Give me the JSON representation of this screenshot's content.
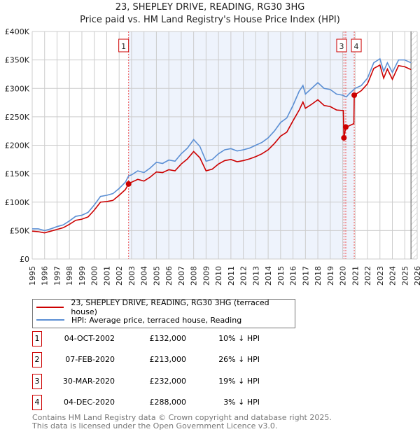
{
  "chart_data": {
    "type": "line",
    "title": "23, SHEPLEY DRIVE, READING, RG30 3HG",
    "subtitle": "Price paid vs. HM Land Registry's House Price Index (HPI)",
    "xlim": [
      1995,
      2026
    ],
    "ylim": [
      0,
      400000
    ],
    "x_ticks": [
      "1995",
      "1996",
      "1997",
      "1998",
      "1999",
      "2000",
      "2001",
      "2002",
      "2003",
      "2004",
      "2005",
      "2006",
      "2007",
      "2008",
      "2009",
      "2010",
      "2011",
      "2012",
      "2013",
      "2014",
      "2015",
      "2016",
      "2017",
      "2018",
      "2019",
      "2020",
      "2021",
      "2022",
      "2023",
      "2024",
      "2025",
      "2026"
    ],
    "y_ticks": [
      {
        "v": 0,
        "label": "£0"
      },
      {
        "v": 50000,
        "label": "£50K"
      },
      {
        "v": 100000,
        "label": "£100K"
      },
      {
        "v": 150000,
        "label": "£150K"
      },
      {
        "v": 200000,
        "label": "£200K"
      },
      {
        "v": 250000,
        "label": "£250K"
      },
      {
        "v": 300000,
        "label": "£300K"
      },
      {
        "v": 350000,
        "label": "£350K"
      },
      {
        "v": 400000,
        "label": "£400K"
      }
    ],
    "grid": true,
    "series": [
      {
        "name": "23, SHEPLEY DRIVE, READING, RG30 3HG (terraced house)",
        "color": "#cc0000",
        "x": [
          1995,
          1995.5,
          1996,
          1996.5,
          1997,
          1997.5,
          1998,
          1998.5,
          1999,
          1999.5,
          2000,
          2000.5,
          2001,
          2001.5,
          2002,
          2002.5,
          2002.76,
          2003,
          2003.5,
          2004,
          2004.5,
          2005,
          2005.5,
          2006,
          2006.5,
          2007,
          2007.5,
          2008,
          2008.5,
          2009,
          2009.5,
          2010,
          2010.5,
          2011,
          2011.5,
          2012,
          2012.5,
          2013,
          2013.5,
          2014,
          2014.5,
          2015,
          2015.5,
          2016,
          2016.5,
          2016.8,
          2017,
          2017.5,
          2018,
          2018.5,
          2019,
          2019.5,
          2020.05,
          2020.1,
          2020.25,
          2020.5,
          2020.9,
          2020.93,
          2021.5,
          2022,
          2022.5,
          2023,
          2023.3,
          2023.6,
          2024,
          2024.5,
          2025,
          2025.5
        ],
        "y": [
          49,
          48,
          46,
          49,
          52,
          55,
          61,
          68,
          70,
          74,
          86,
          100,
          101,
          103,
          112,
          122,
          132,
          135,
          140,
          137,
          144,
          153,
          152,
          157,
          155,
          167,
          176,
          189,
          178,
          155,
          158,
          167,
          173,
          175,
          171,
          173,
          176,
          180,
          185,
          192,
          203,
          216,
          223,
          243,
          262,
          276,
          265,
          272,
          280,
          270,
          268,
          262,
          261,
          213,
          232,
          234,
          238,
          288,
          296,
          308,
          335,
          341,
          318,
          334,
          316,
          340,
          338,
          333
        ]
      },
      {
        "name": "HPI: Average price, terraced house, Reading",
        "color": "#5b8fd4",
        "x": [
          1995,
          1995.5,
          1996,
          1996.5,
          1997,
          1997.5,
          1998,
          1998.5,
          1999,
          1999.5,
          2000,
          2000.5,
          2001,
          2001.5,
          2002,
          2002.5,
          2002.76,
          2003,
          2003.5,
          2004,
          2004.5,
          2005,
          2005.5,
          2006,
          2006.5,
          2007,
          2007.5,
          2008,
          2008.5,
          2009,
          2009.5,
          2010,
          2010.5,
          2011,
          2011.5,
          2012,
          2012.5,
          2013,
          2013.5,
          2014,
          2014.5,
          2015,
          2015.5,
          2016,
          2016.5,
          2016.8,
          2017,
          2017.5,
          2018,
          2018.5,
          2019,
          2019.5,
          2020,
          2020.3,
          2020.5,
          2021,
          2021.5,
          2022,
          2022.5,
          2023,
          2023.3,
          2023.6,
          2024,
          2024.5,
          2025,
          2025.5
        ],
        "y": [
          53,
          53,
          50,
          53,
          57,
          60,
          67,
          75,
          77,
          82,
          95,
          110,
          112,
          115,
          124,
          135,
          146,
          148,
          155,
          152,
          160,
          170,
          168,
          174,
          172,
          185,
          195,
          210,
          198,
          172,
          175,
          185,
          192,
          194,
          190,
          192,
          195,
          200,
          205,
          213,
          225,
          240,
          248,
          270,
          295,
          305,
          290,
          300,
          310,
          300,
          298,
          290,
          288,
          285,
          290,
          300,
          305,
          318,
          345,
          352,
          330,
          345,
          328,
          350,
          350,
          345
        ]
      }
    ],
    "y_units": "£ thousands",
    "sales": [
      {
        "n": "1",
        "x": 2002.76,
        "y": 132,
        "date": "04-OCT-2002",
        "price": "£132,000",
        "hpi": "10% ↓ HPI"
      },
      {
        "n": "2",
        "x": 2020.1,
        "y": 213,
        "date": "07-FEB-2020",
        "price": "£213,000",
        "hpi": "26% ↓ HPI"
      },
      {
        "n": "3",
        "x": 2020.25,
        "y": 232,
        "date": "30-MAR-2020",
        "price": "£232,000",
        "hpi": "19% ↓ HPI"
      },
      {
        "n": "4",
        "x": 2020.93,
        "y": 288,
        "date": "04-DEC-2020",
        "price": "£288,000",
        "hpi": "3% ↓ HPI"
      }
    ]
  },
  "footer": {
    "line1": "Contains HM Land Registry data © Crown copyright and database right 2025.",
    "line2": "This data is licensed under the Open Government Licence v3.0."
  }
}
